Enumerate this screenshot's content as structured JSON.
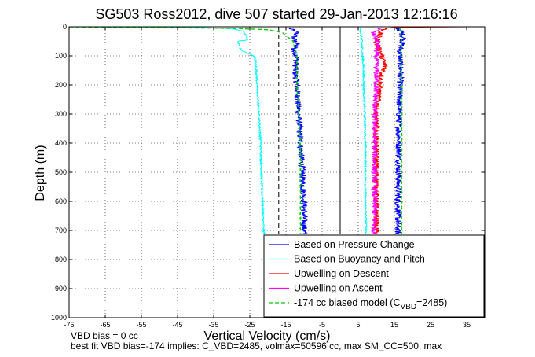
{
  "chart_data": {
    "type": "line",
    "title": "SG503 Ross2012, dive 507 started 29-Jan-2013 12:16:16",
    "xlabel": "Vertical Velocity (cm/s)",
    "ylabel": "Depth (m)",
    "xlim": [
      -75,
      40
    ],
    "ylim": [
      0,
      1000
    ],
    "y_reversed": true,
    "grid": true,
    "xticks": [
      -75,
      -65,
      -55,
      -45,
      -35,
      -25,
      -15,
      -5,
      5,
      15,
      25,
      35
    ],
    "yticks": [
      0,
      100,
      200,
      300,
      400,
      500,
      600,
      700,
      800,
      900,
      1000
    ],
    "legend_position": "bottom-right",
    "legend": [
      {
        "label": "Based on Pressure Change",
        "color": "#0000ff",
        "style": "solid"
      },
      {
        "label": "Based on Buoyancy and Pitch",
        "color": "#00ffff",
        "style": "solid"
      },
      {
        "label": "Upwelling on Descent",
        "color": "#ff0000",
        "style": "solid"
      },
      {
        "label": "Upwelling on Ascent",
        "color": "#ff00ff",
        "style": "solid"
      },
      {
        "label_prefix": "-174 cc biased model (C",
        "label_sub": "VBD",
        "label_suffix": "=2485)",
        "color": "#00cc00",
        "style": "dashed"
      }
    ],
    "series": [
      {
        "name": "Based on Pressure Change",
        "color": "#0000ff",
        "noise": 0.9,
        "branches": [
          {
            "depth": [
              5,
              20,
              40,
              60,
              80,
              100,
              150,
              200,
              300,
              400,
              500,
              600,
              700,
              712
            ],
            "velocity": [
              -14,
              -12,
              -13,
              -12,
              -13,
              -12,
              -12.5,
              -12,
              -11.5,
              -11,
              -10.5,
              -10,
              -10,
              -10
            ]
          },
          {
            "depth": [
              5,
              20,
              40,
              60,
              80,
              100,
              150,
              200,
              300,
              400,
              500,
              600,
              700,
              712
            ],
            "velocity": [
              16,
              17,
              17.5,
              17,
              16.5,
              16.5,
              16.8,
              16.5,
              16.3,
              16.2,
              16.2,
              16.0,
              16.0,
              16.0
            ]
          }
        ]
      },
      {
        "name": "Based on Buoyancy and Pitch",
        "color": "#00ffff",
        "noise": 0.25,
        "branches": [
          {
            "depth": [
              0,
              2,
              6,
              15,
              30,
              45,
              50,
              60,
              80,
              100,
              110,
              150,
              200,
              300,
              400,
              500,
              600,
              700,
              712
            ],
            "velocity": [
              -75,
              -40,
              -30,
              -27,
              -26,
              -25.5,
              -28.5,
              -28,
              -27.5,
              -24,
              -23.5,
              -23.2,
              -23,
              -22.5,
              -22,
              -21.8,
              -21.5,
              -21.2,
              -21
            ]
          },
          {
            "depth": [
              5,
              50,
              100,
              150,
              200,
              300,
              400,
              500,
              600,
              700,
              712
            ],
            "velocity": [
              5.5,
              6,
              6.2,
              6.5,
              6.5,
              6.8,
              7,
              7,
              7,
              7.2,
              7.2
            ]
          }
        ]
      },
      {
        "name": "Upwelling on Descent",
        "color": "#ff0000",
        "noise": 0.8,
        "branches": [
          {
            "depth": [
              0,
              1,
              2,
              4,
              10,
              20,
              40,
              60,
              80,
              100,
              120,
              140,
              160,
              200,
              250,
              300,
              400,
              500,
              600,
              700,
              712
            ],
            "velocity": [
              36,
              20,
              16,
              13,
              12,
              11,
              10.5,
              10,
              11,
              11.5,
              12,
              12.5,
              11.5,
              11,
              10.5,
              10,
              10,
              10,
              10,
              10,
              10
            ]
          }
        ]
      },
      {
        "name": "Upwelling on Ascent",
        "color": "#ff00ff",
        "noise": 0.8,
        "branches": [
          {
            "depth": [
              5,
              20,
              40,
              60,
              80,
              100,
              150,
              200,
              300,
              400,
              500,
              600,
              700,
              712
            ],
            "velocity": [
              11,
              9,
              10,
              10.5,
              10,
              10,
              10,
              10,
              9.5,
              9.5,
              9.5,
              9.5,
              9.5,
              9.5
            ]
          }
        ]
      },
      {
        "name": "-174 cc biased model",
        "color": "#00cc00",
        "style": "dashed",
        "noise": 0.1,
        "branches": [
          {
            "depth": [
              0,
              5,
              10,
              20,
              50,
              100,
              200,
              300,
              400,
              500,
              600,
              700,
              712
            ],
            "velocity": [
              -75,
              -30,
              -20,
              -16,
              -13,
              -12,
              -12,
              -11.5,
              -11,
              -11,
              -11,
              -11,
              -11
            ]
          },
          {
            "depth": [
              5,
              50,
              100,
              200,
              300,
              400,
              500,
              600,
              700,
              712
            ],
            "velocity": [
              16.5,
              17,
              16.8,
              17,
              17,
              17,
              17,
              17,
              17,
              17
            ]
          }
        ]
      }
    ],
    "reference_lines": [
      {
        "velocity": 0,
        "style": "solid",
        "color": "#000000",
        "depth_range": [
          0,
          712
        ]
      },
      {
        "velocity": -17,
        "style": "dashed",
        "color": "#000000",
        "depth_range": [
          0,
          712
        ]
      }
    ],
    "notes": [
      "VBD bias = 0 cc",
      "best fit VBD bias=-174 implies: C_VBD=2485, volmax=50596 cc, max SM_CC=500, max"
    ]
  }
}
